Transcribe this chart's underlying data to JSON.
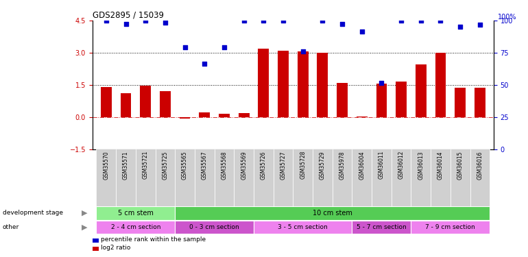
{
  "title": "GDS2895 / 15039",
  "samples": [
    "GSM35570",
    "GSM35571",
    "GSM35721",
    "GSM35725",
    "GSM35565",
    "GSM35567",
    "GSM35568",
    "GSM35569",
    "GSM35726",
    "GSM35727",
    "GSM35728",
    "GSM35729",
    "GSM35978",
    "GSM36004",
    "GSM36011",
    "GSM36012",
    "GSM36013",
    "GSM36014",
    "GSM36015",
    "GSM36016"
  ],
  "log2_ratio": [
    1.4,
    1.1,
    1.45,
    1.2,
    -0.08,
    0.2,
    0.15,
    0.18,
    3.2,
    3.1,
    3.05,
    3.0,
    1.6,
    0.02,
    1.55,
    1.65,
    2.45,
    3.0,
    1.35,
    1.35
  ],
  "percentile": [
    4.5,
    4.35,
    4.5,
    4.4,
    3.25,
    2.5,
    3.25,
    4.5,
    4.5,
    4.5,
    3.05,
    4.5,
    4.35,
    4.0,
    1.6,
    4.5,
    4.5,
    4.5,
    4.2,
    4.3
  ],
  "bar_color": "#cc0000",
  "dot_color": "#0000cc",
  "dotline1": 3.0,
  "dotline2": 1.5,
  "ylim_left": [
    -1.5,
    4.5
  ],
  "ylim_right": [
    0,
    100
  ],
  "yticks_left": [
    -1.5,
    0,
    1.5,
    3.0,
    4.5
  ],
  "yticks_right": [
    0,
    25,
    50,
    75,
    100
  ],
  "development_stage_groups": [
    {
      "label": "5 cm stem",
      "start": 0,
      "end": 4,
      "color": "#90ee90"
    },
    {
      "label": "10 cm stem",
      "start": 4,
      "end": 20,
      "color": "#55cc55"
    }
  ],
  "other_groups": [
    {
      "label": "2 - 4 cm section",
      "start": 0,
      "end": 4,
      "color": "#ee82ee"
    },
    {
      "label": "0 - 3 cm section",
      "start": 4,
      "end": 8,
      "color": "#cc55cc"
    },
    {
      "label": "3 - 5 cm section",
      "start": 8,
      "end": 13,
      "color": "#ee82ee"
    },
    {
      "label": "5 - 7 cm section",
      "start": 13,
      "end": 16,
      "color": "#cc55cc"
    },
    {
      "label": "7 - 9 cm section",
      "start": 16,
      "end": 20,
      "color": "#ee82ee"
    }
  ],
  "dev_label": "development stage",
  "other_label": "other",
  "legend_items": [
    {
      "label": "log2 ratio",
      "color": "#cc0000"
    },
    {
      "label": "percentile rank within the sample",
      "color": "#0000cc"
    }
  ]
}
